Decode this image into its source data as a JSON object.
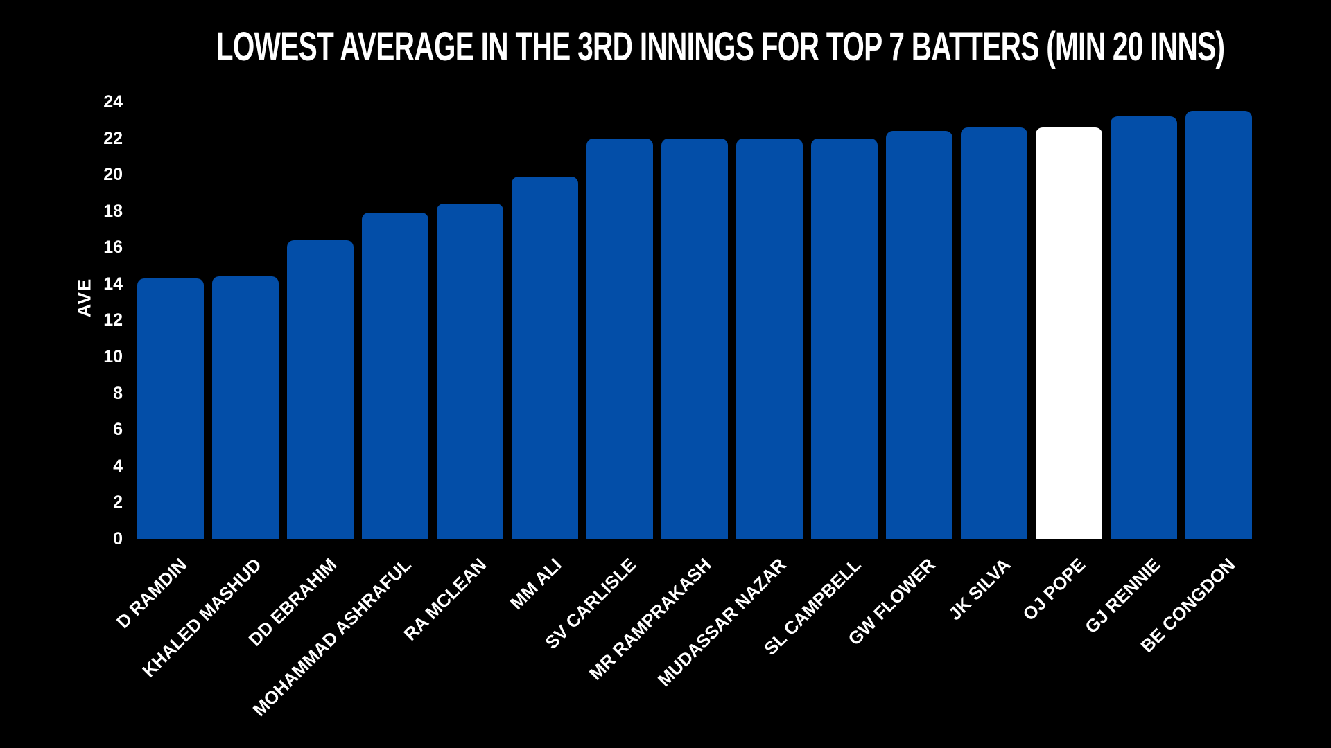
{
  "chart_data": {
    "type": "bar",
    "title": "LOWEST AVERAGE IN THE 3RD INNINGS FOR TOP 7 BATTERS (MIN 20 INNS)",
    "ylabel": "AVE",
    "xlabel": "",
    "categories": [
      "D RAMDIN",
      "KHALED MASHUD",
      "DD EBRAHIM",
      "MOHAMMAD ASHRAFUL",
      "RA MCLEAN",
      "MM ALI",
      "SV CARLISLE",
      "MR RAMPRAKASH",
      "MUDASSAR NAZAR",
      "SL CAMPBELL",
      "GW FLOWER",
      "JK SILVA",
      "OJ POPE",
      "GJ RENNIE",
      "BE CONGDON"
    ],
    "values": [
      14.3,
      14.4,
      16.4,
      17.9,
      18.4,
      19.9,
      22.0,
      22.0,
      22.0,
      22.0,
      22.4,
      22.6,
      22.6,
      23.2,
      23.5
    ],
    "highlighted_category": "OJ POPE",
    "highlight_index": 12,
    "colors": {
      "background": "#000000",
      "bar": "#034ea8",
      "highlight_bar": "#ffffff",
      "text": "#ffffff"
    },
    "yticks": [
      0,
      2,
      4,
      6,
      8,
      10,
      12,
      14,
      16,
      18,
      20,
      22,
      24
    ],
    "ylim": [
      0,
      24
    ],
    "grid": false,
    "legend": null
  }
}
